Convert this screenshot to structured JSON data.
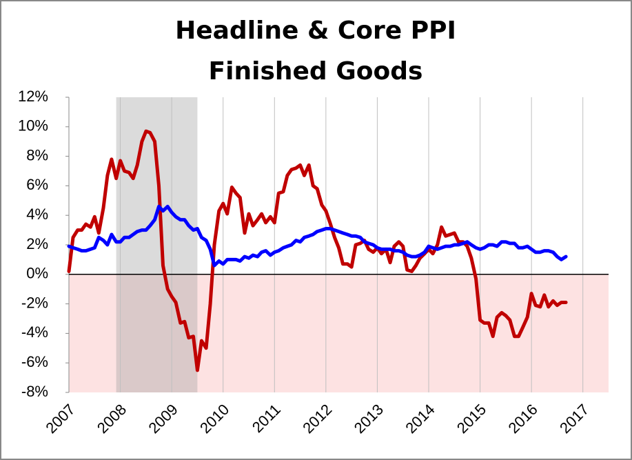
{
  "chart_data": {
    "type": "line",
    "title": "Headline & Core PPI",
    "subtitle": "Finished Goods",
    "x": [
      2007.0,
      2007.08,
      2007.17,
      2007.25,
      2007.33,
      2007.42,
      2007.5,
      2007.58,
      2007.67,
      2007.75,
      2007.83,
      2007.92,
      2008.0,
      2008.08,
      2008.17,
      2008.25,
      2008.33,
      2008.42,
      2008.5,
      2008.58,
      2008.67,
      2008.75,
      2008.83,
      2008.92,
      2009.0,
      2009.08,
      2009.17,
      2009.25,
      2009.33,
      2009.42,
      2009.5,
      2009.58,
      2009.67,
      2009.75,
      2009.83,
      2009.92,
      2010.0,
      2010.08,
      2010.17,
      2010.25,
      2010.33,
      2010.42,
      2010.5,
      2010.58,
      2010.67,
      2010.75,
      2010.83,
      2010.92,
      2011.0,
      2011.08,
      2011.17,
      2011.25,
      2011.33,
      2011.42,
      2011.5,
      2011.58,
      2011.67,
      2011.75,
      2011.83,
      2011.92,
      2012.0,
      2012.08,
      2012.17,
      2012.25,
      2012.33,
      2012.42,
      2012.5,
      2012.58,
      2012.67,
      2012.75,
      2012.83,
      2012.92,
      2013.0,
      2013.08,
      2013.17,
      2013.25,
      2013.33,
      2013.42,
      2013.5,
      2013.58,
      2013.67,
      2013.75,
      2013.83,
      2013.92,
      2014.0,
      2014.08,
      2014.17,
      2014.25,
      2014.33,
      2014.42,
      2014.5,
      2014.58,
      2014.67,
      2014.75,
      2014.83,
      2014.92,
      2015.0,
      2015.08,
      2015.17,
      2015.25,
      2015.33,
      2015.42,
      2015.5,
      2015.58,
      2015.67,
      2015.75,
      2015.83,
      2015.92,
      2016.0,
      2016.08,
      2016.17,
      2016.25,
      2016.33,
      2016.42,
      2016.5,
      2016.58,
      2016.67
    ],
    "series": [
      {
        "color": "#c00000",
        "values": [
          0.2,
          2.5,
          3.0,
          3.0,
          3.4,
          3.2,
          3.9,
          2.8,
          4.5,
          6.7,
          7.8,
          6.5,
          7.7,
          7.0,
          6.9,
          6.5,
          7.4,
          9.0,
          9.7,
          9.6,
          9.0,
          6.0,
          0.6,
          -1.0,
          -1.5,
          -1.9,
          -3.3,
          -3.2,
          -4.3,
          -4.2,
          -6.5,
          -4.5,
          -5.0,
          -2.0,
          2.0,
          4.3,
          4.8,
          4.1,
          5.9,
          5.5,
          5.2,
          2.8,
          4.1,
          3.3,
          3.7,
          4.1,
          3.5,
          3.9,
          3.5,
          5.5,
          5.6,
          6.7,
          7.1,
          7.2,
          7.4,
          6.7,
          7.4,
          6.0,
          5.8,
          4.7,
          4.3,
          3.5,
          2.5,
          1.8,
          0.7,
          0.7,
          0.5,
          2.0,
          2.1,
          2.3,
          1.7,
          1.5,
          1.8,
          1.4,
          1.7,
          0.8,
          1.9,
          2.2,
          1.9,
          0.3,
          0.2,
          0.6,
          1.1,
          1.4,
          1.7,
          1.4,
          2.0,
          3.2,
          2.6,
          2.7,
          2.8,
          2.2,
          2.2,
          1.9,
          1.1,
          -0.3,
          -3.1,
          -3.3,
          -3.3,
          -4.2,
          -2.9,
          -2.6,
          -2.8,
          -3.1,
          -4.2,
          -4.2,
          -3.6,
          -2.9,
          -1.3,
          -2.1,
          -2.2,
          -1.4,
          -2.2,
          -1.8,
          -2.1,
          -1.9,
          -1.9
        ]
      },
      {
        "color": "#0000ff",
        "values": [
          1.9,
          1.8,
          1.7,
          1.6,
          1.6,
          1.7,
          1.8,
          2.5,
          2.3,
          2.0,
          2.7,
          2.2,
          2.2,
          2.5,
          2.5,
          2.7,
          2.9,
          3.0,
          3.0,
          3.3,
          3.7,
          4.6,
          4.3,
          4.6,
          4.2,
          3.9,
          3.7,
          3.7,
          3.3,
          3.0,
          3.1,
          2.5,
          2.3,
          1.7,
          0.6,
          0.9,
          0.7,
          1.0,
          1.0,
          1.0,
          0.9,
          1.2,
          1.1,
          1.3,
          1.2,
          1.5,
          1.6,
          1.3,
          1.5,
          1.6,
          1.8,
          1.9,
          2.0,
          2.3,
          2.2,
          2.5,
          2.6,
          2.7,
          2.9,
          3.0,
          3.1,
          3.1,
          3.0,
          2.9,
          2.8,
          2.7,
          2.6,
          2.6,
          2.5,
          2.2,
          2.1,
          2.0,
          1.8,
          1.7,
          1.7,
          1.7,
          1.6,
          1.6,
          1.5,
          1.3,
          1.2,
          1.2,
          1.3,
          1.5,
          1.9,
          1.8,
          1.7,
          1.8,
          1.9,
          1.9,
          2.0,
          2.0,
          2.1,
          2.2,
          2.0,
          1.8,
          1.7,
          1.8,
          2.0,
          2.0,
          1.9,
          2.2,
          2.2,
          2.1,
          2.1,
          1.8,
          1.8,
          1.9,
          1.7,
          1.5,
          1.5,
          1.6,
          1.6,
          1.5,
          1.2,
          1.0,
          1.2
        ]
      }
    ],
    "xlim": [
      2007,
      2017.5
    ],
    "xticks": [
      2007,
      2008,
      2009,
      2010,
      2011,
      2012,
      2013,
      2014,
      2015,
      2016,
      2017
    ],
    "ylim": [
      -8,
      12
    ],
    "yticks": [
      {
        "value": -8,
        "label": "-8%"
      },
      {
        "value": -6,
        "label": "-6%"
      },
      {
        "value": -4,
        "label": "-4%"
      },
      {
        "value": -2,
        "label": "-2%"
      },
      {
        "value": 0,
        "label": "0%"
      },
      {
        "value": 2,
        "label": "2%"
      },
      {
        "value": 4,
        "label": "4%"
      },
      {
        "value": 6,
        "label": "6%"
      },
      {
        "value": 8,
        "label": "8%"
      },
      {
        "value": 10,
        "label": "10%"
      },
      {
        "value": 12,
        "label": "12%"
      }
    ],
    "shaded_regions": [
      [
        2007.92,
        2009.5
      ]
    ],
    "negative_shading": "#fde2e2",
    "grid": "x"
  }
}
